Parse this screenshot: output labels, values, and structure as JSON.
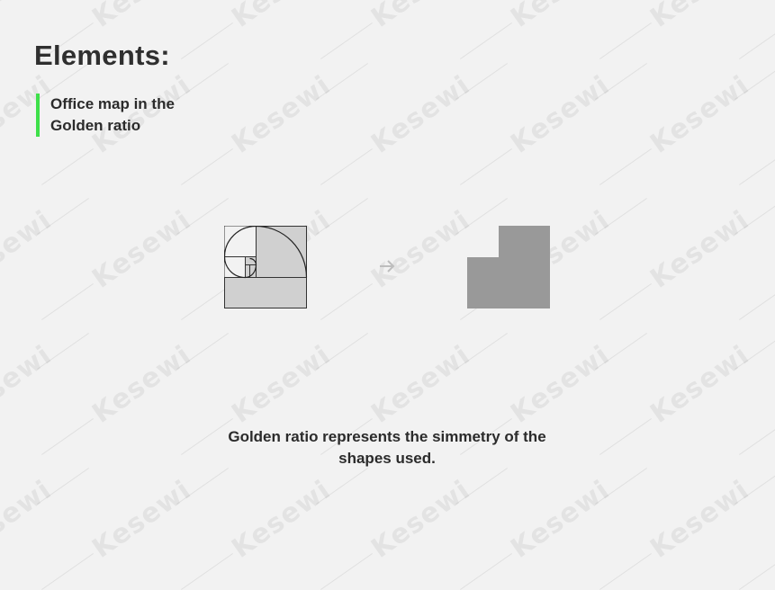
{
  "header": {
    "title": "Elements:",
    "subtitle": "Office map in the Golden ratio"
  },
  "caption": "Golden ratio represents the simmetry of the shapes used.",
  "watermark": "Kesewi",
  "colors": {
    "accent": "#3ee04a",
    "shape_fill": "#999999",
    "golden_fill": "#d0d0d0",
    "arrow": "#bdbdbd"
  },
  "icons": {
    "arrow": "arrow-right-icon"
  }
}
